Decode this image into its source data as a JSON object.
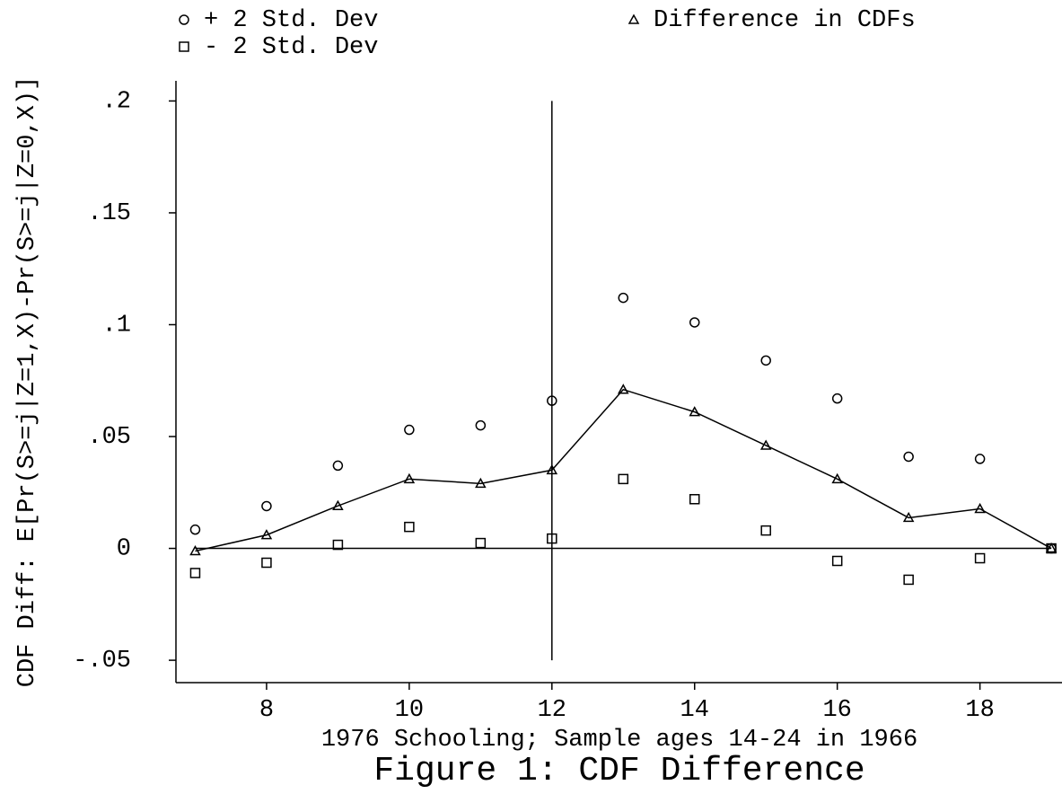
{
  "chart_data": {
    "type": "scatter",
    "title": "Figure 1:  CDF Difference",
    "xlabel": "1976 Schooling; Sample ages 14-24 in 1966",
    "ylabel": "CDF Diff: E[Pr(S>=j|Z=1,X)-Pr(S>=j|Z=0,X)]",
    "x": [
      7,
      8,
      9,
      10,
      11,
      12,
      13,
      14,
      15,
      16,
      17,
      18,
      19
    ],
    "series": [
      {
        "name": "+ 2 Std. Dev",
        "color": "#000000",
        "marker": "circle",
        "line": false,
        "values": [
          0.0084,
          0.0189,
          0.037,
          0.053,
          0.055,
          0.066,
          0.112,
          0.101,
          0.084,
          0.067,
          0.041,
          0.04,
          0
        ]
      },
      {
        "name": "- 2 Std. Dev",
        "color": "#000000",
        "marker": "square",
        "line": false,
        "values": [
          -0.011,
          -0.0064,
          0.0016,
          0.0096,
          0.0024,
          0.0044,
          0.031,
          0.022,
          0.008,
          -0.0056,
          -0.014,
          -0.0044,
          0
        ]
      },
      {
        "name": "Difference in CDFs",
        "color": "#000000",
        "marker": "triangle",
        "line": true,
        "values": [
          -0.0012,
          0.006,
          0.019,
          0.031,
          0.029,
          0.035,
          0.071,
          0.061,
          0.046,
          0.031,
          0.0137,
          0.0177,
          0
        ]
      }
    ],
    "xlim": [
      6.73,
      19.15
    ],
    "ylim": [
      -0.06,
      0.209
    ],
    "xticks": [
      8,
      10,
      12,
      14,
      16,
      18
    ],
    "yticks": [
      {
        "value": 0.2,
        "label": ".2"
      },
      {
        "value": 0.15,
        "label": ".15"
      },
      {
        "value": 0.1,
        "label": ".1"
      },
      {
        "value": 0.05,
        "label": ".05"
      },
      0,
      {
        "value": -0.05,
        "label": "-.05"
      }
    ],
    "vline": {
      "x": 12,
      "ymin": -0.05,
      "ymax": 0.2
    },
    "hline": {
      "y": 0,
      "xmin": 7,
      "xmax": 19
    },
    "legend": "top"
  }
}
